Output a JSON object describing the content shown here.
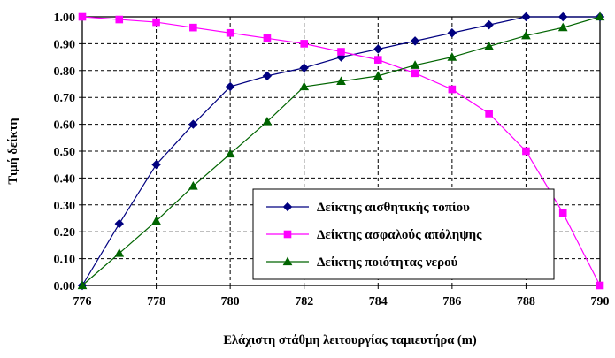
{
  "chart_data": {
    "type": "line",
    "x": [
      776,
      777,
      778,
      779,
      780,
      781,
      782,
      783,
      784,
      785,
      786,
      787,
      788,
      789,
      790
    ],
    "series": [
      {
        "name": "Δείκτης αισθητικής τοπίου",
        "color": "#000080",
        "marker": "diamond",
        "values": [
          0.0,
          0.23,
          0.45,
          0.6,
          0.74,
          0.78,
          0.81,
          0.85,
          0.88,
          0.91,
          0.94,
          0.97,
          1.0,
          1.0,
          1.0
        ]
      },
      {
        "name": "Δείκτης ασφαλούς απόληψης",
        "color": "#ff00ff",
        "marker": "square",
        "values": [
          1.0,
          0.99,
          0.98,
          0.96,
          0.94,
          0.92,
          0.9,
          0.87,
          0.84,
          0.79,
          0.73,
          0.64,
          0.5,
          0.27,
          0.0
        ]
      },
      {
        "name": "Δείκτης ποιότητας νερού",
        "color": "#006400",
        "marker": "triangle",
        "values": [
          0.0,
          0.12,
          0.24,
          0.37,
          0.49,
          0.61,
          0.74,
          0.76,
          0.78,
          0.82,
          0.85,
          0.89,
          0.93,
          0.96,
          1.0
        ]
      }
    ],
    "xlabel": "Ελάχιστη στάθμη λειτουργίας ταμιευτήρα (m)",
    "ylabel": "Τιμή δείκτη",
    "xlim": [
      776,
      790
    ],
    "ylim": [
      0,
      1
    ],
    "x_ticks": [
      "776",
      "778",
      "780",
      "782",
      "784",
      "786",
      "788",
      "790"
    ],
    "y_ticks": [
      "0.00",
      "0.10",
      "0.20",
      "0.30",
      "0.40",
      "0.50",
      "0.60",
      "0.70",
      "0.80",
      "0.90",
      "1.00"
    ],
    "grid": true,
    "legend_position": "bottom-right"
  }
}
